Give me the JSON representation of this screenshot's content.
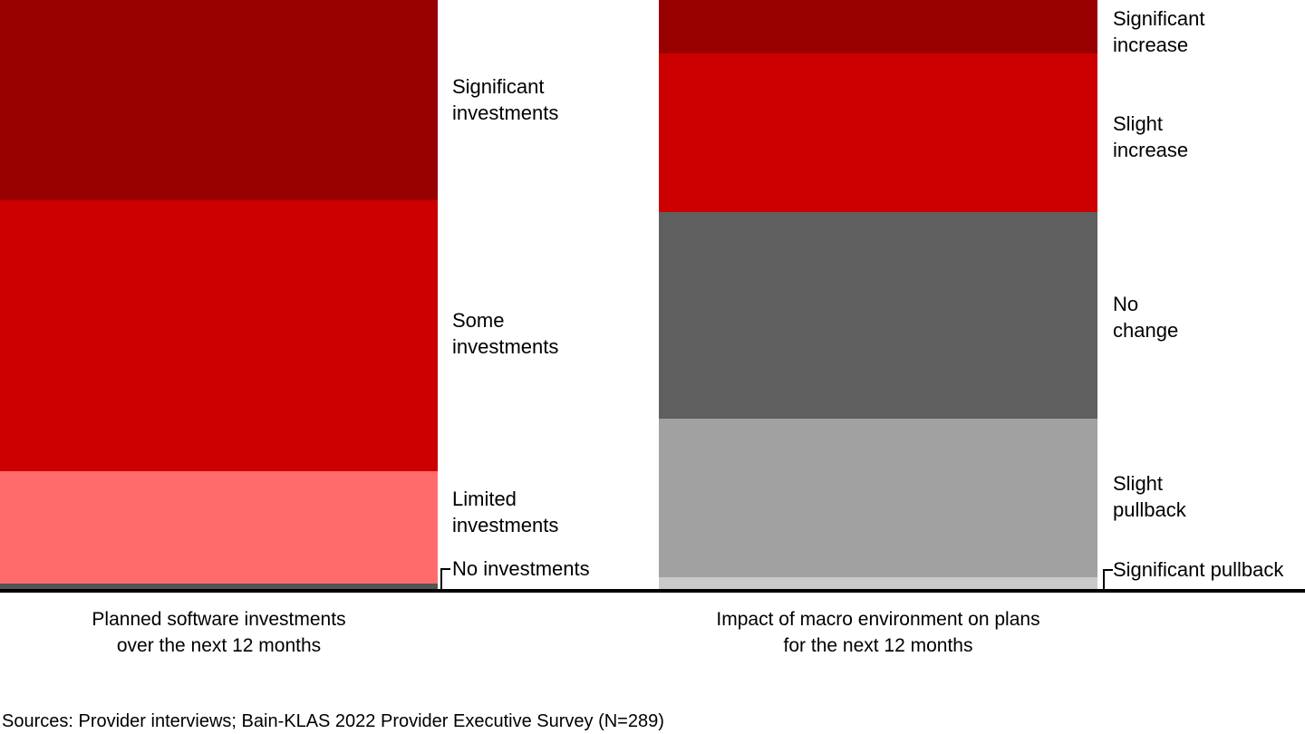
{
  "chart_data": {
    "type": "bar",
    "variant": "stacked-100-percent",
    "orientation": "vertical",
    "unit": "percent",
    "ylim": [
      0,
      100
    ],
    "grid": false,
    "legend": "none",
    "axis_color": "#000000",
    "bars": [
      {
        "title": "Planned software investments over the next 12 months",
        "title_lines": [
          "Planned software investments",
          "over the next 12 months"
        ],
        "segments": [
          {
            "label": "Significant investments",
            "lines": [
              "Significant",
              "investments"
            ],
            "value": 34,
            "color": "#990000"
          },
          {
            "label": "Some investments",
            "lines": [
              "Some",
              "investments"
            ],
            "value": 46,
            "color": "#CC0000"
          },
          {
            "label": "Limited investments",
            "lines": [
              "Limited",
              "investments"
            ],
            "value": 19,
            "color": "#FF6B6B"
          },
          {
            "label": "No investments",
            "lines": [
              "No investments"
            ],
            "value": 1,
            "color": "#545454"
          }
        ]
      },
      {
        "title": "Impact of macro environment on plans for the next 12 months",
        "title_lines": [
          "Impact of macro environment on plans",
          "for the next 12 months"
        ],
        "segments": [
          {
            "label": "Significant increase",
            "lines": [
              "Significant",
              "increase"
            ],
            "value": 9,
            "color": "#990000"
          },
          {
            "label": "Slight increase",
            "lines": [
              "Slight",
              "increase"
            ],
            "value": 27,
            "color": "#CC0000"
          },
          {
            "label": "No change",
            "lines": [
              "No",
              "change"
            ],
            "value": 35,
            "color": "#5F5F5F"
          },
          {
            "label": "Slight pullback",
            "lines": [
              "Slight",
              "pullback"
            ],
            "value": 27,
            "color": "#A1A1A1"
          },
          {
            "label": "Significant pullback",
            "lines": [
              "Significant pullback"
            ],
            "value": 2,
            "color": "#C9C9C9"
          }
        ]
      }
    ],
    "source": "Sources: Provider interviews; Bain-KLAS 2022 Provider Executive Survey (N=289)"
  }
}
